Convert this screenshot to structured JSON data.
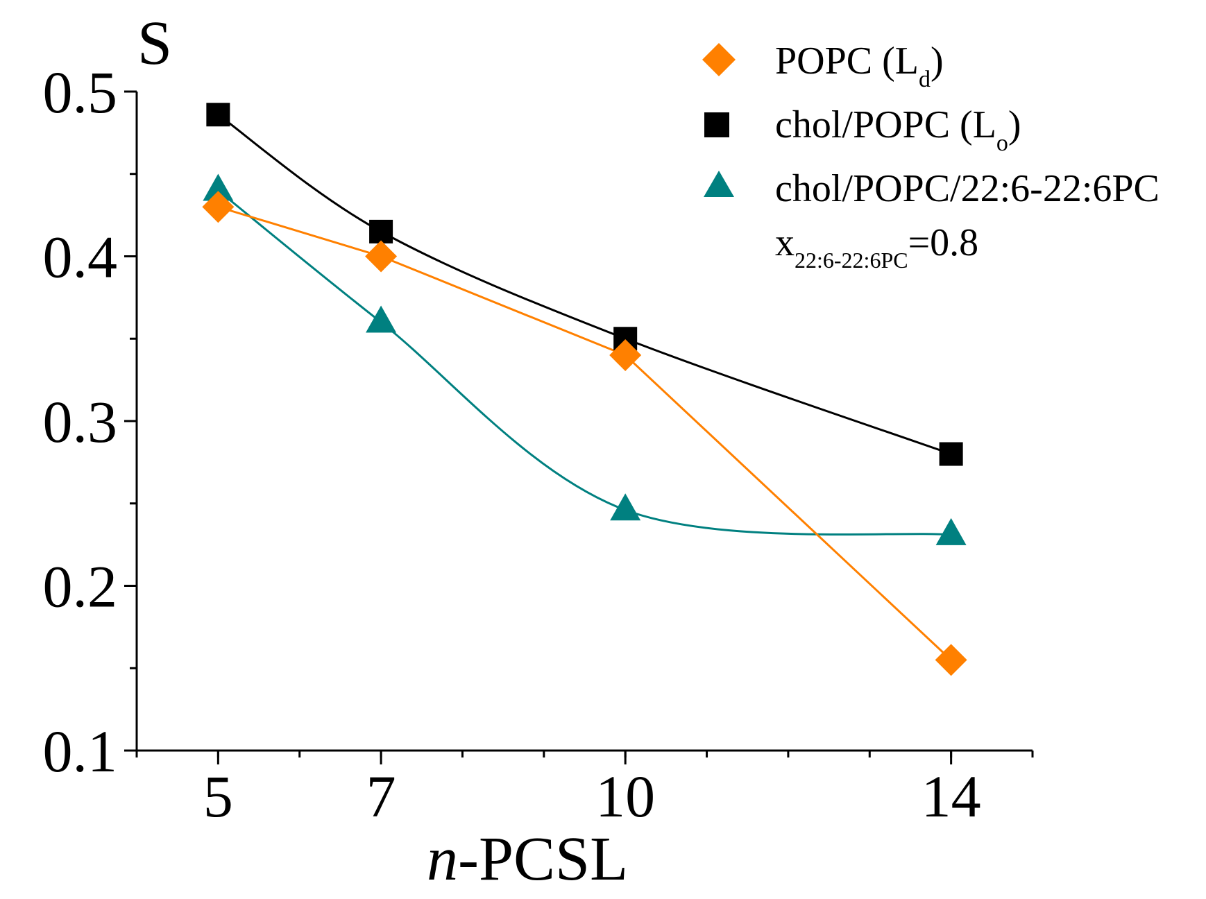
{
  "chart_data": {
    "type": "line",
    "title": "",
    "ylabel": "S",
    "xlabel_italic": "n",
    "xlabel_rest": "-PCSL",
    "x": [
      5,
      7,
      10,
      14
    ],
    "xticks": [
      "5",
      "7",
      "10",
      "14"
    ],
    "yticks": [
      "0.1",
      "0.2",
      "0.3",
      "0.4",
      "0.5"
    ],
    "xlim": [
      4,
      15
    ],
    "ylim": [
      0.1,
      0.5
    ],
    "grid": false,
    "legend_position": "top-right",
    "series": [
      {
        "name": "POPC (Ld)",
        "legend_main": "POPC (L",
        "legend_sub": "d",
        "legend_tail": ")",
        "marker": "diamond",
        "color": "#ff8000",
        "curve": "straight",
        "values": [
          0.43,
          0.4,
          0.34,
          0.155
        ]
      },
      {
        "name": "chol/POPC (Lo)",
        "legend_main": "chol/POPC (L",
        "legend_sub": "o",
        "legend_tail": ")",
        "marker": "square",
        "color": "#000000",
        "curve": "smooth",
        "values": [
          0.486,
          0.415,
          0.35,
          0.28
        ]
      },
      {
        "name": "chol/POPC/22:6-22:6PC",
        "legend_main": "chol/POPC/22:6-22:6PC",
        "legend_sub": "",
        "legend_tail": "",
        "marker": "triangle",
        "color": "#008080",
        "curve": "smooth",
        "values": [
          0.44,
          0.36,
          0.246,
          0.231
        ]
      }
    ],
    "annotation": {
      "main": "x",
      "sub": "22:6-22:6PC",
      "tail": "=0.8"
    }
  }
}
